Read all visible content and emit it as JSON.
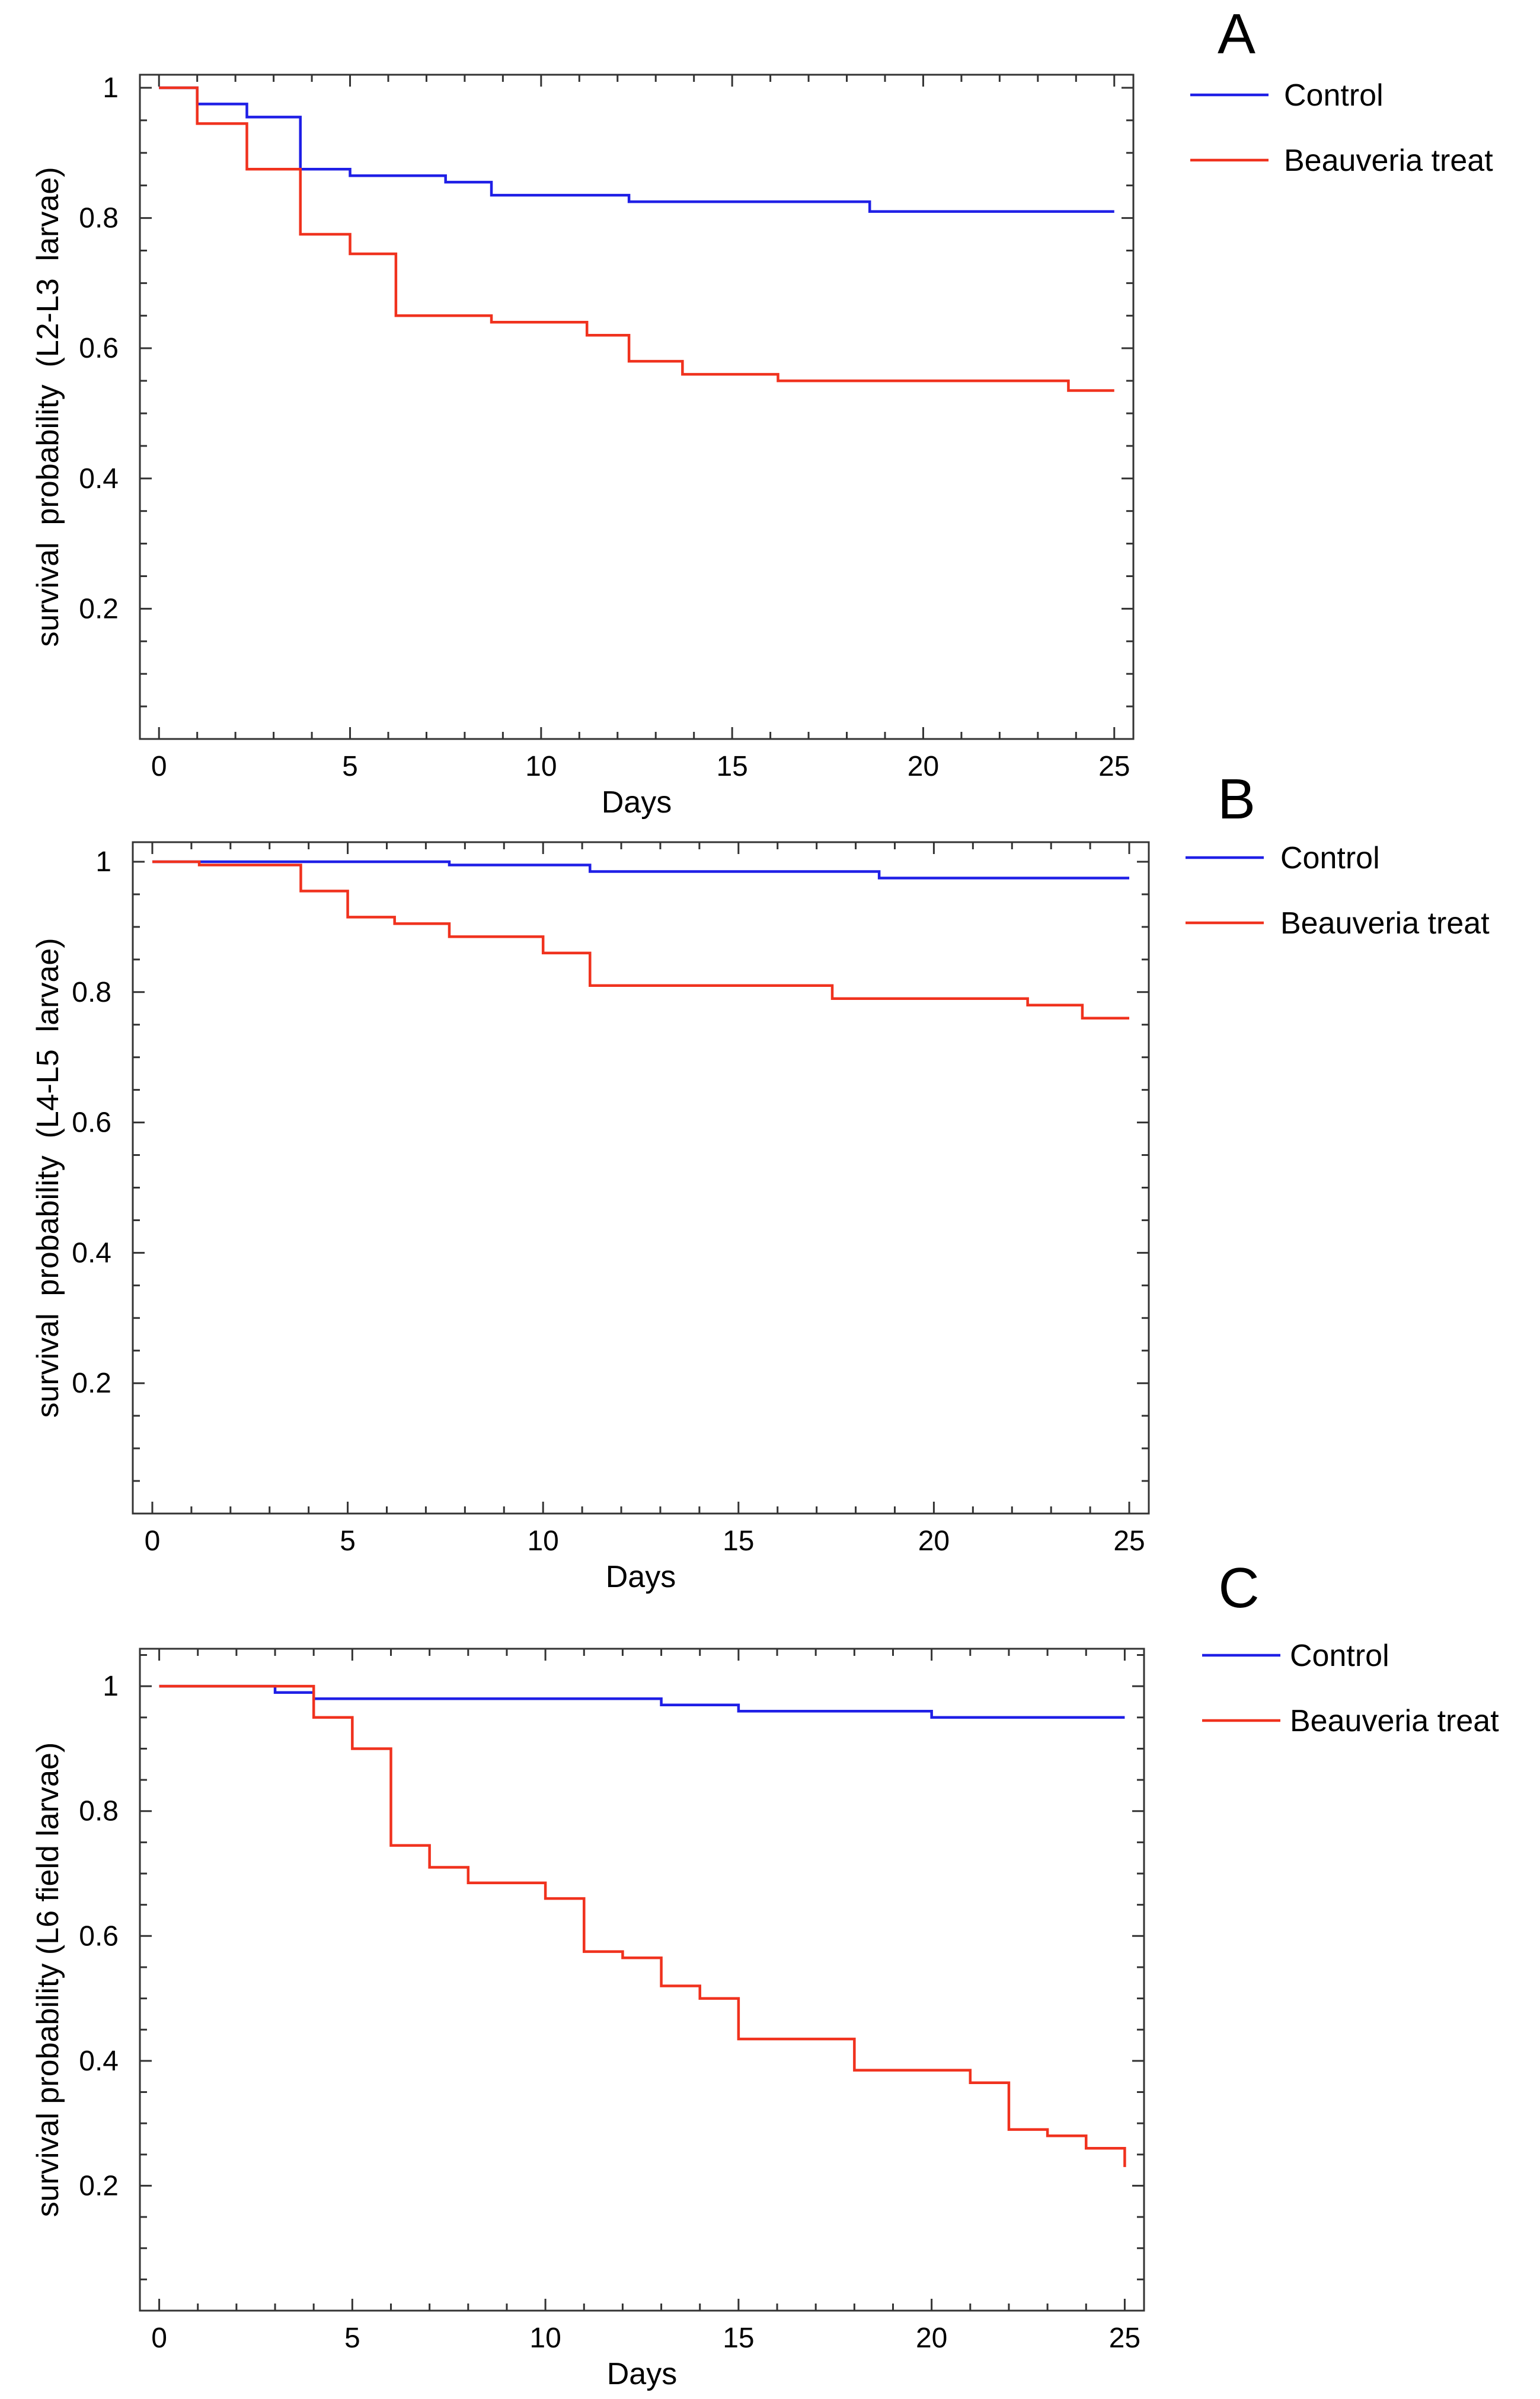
{
  "figure": {
    "description_colors": {
      "control": "#1f1fe6",
      "beauveria": "#f0321e",
      "axes": "#333333"
    }
  },
  "chart_data": [
    {
      "type": "line",
      "panel_letter": "A",
      "title": "",
      "xlabel": "Days",
      "ylabel": "survival  probability  (L2-L3  larvae)",
      "xlim": [
        -0.5,
        25.5
      ],
      "ylim": [
        0,
        1.02
      ],
      "xticks": [
        0,
        5,
        10,
        15,
        20,
        25
      ],
      "yticks": [
        0.2,
        0.4,
        0.6,
        0.8,
        1
      ],
      "ytick_labels": [
        "0.2",
        "0.4",
        "0.6",
        "0.8",
        "1"
      ],
      "grid": false,
      "legend_position": "outside-top-right",
      "series": [
        {
          "name": "Control",
          "color": "#1f1fe6",
          "steps": [
            [
              0,
              1
            ],
            [
              1,
              0.975
            ],
            [
              2.3,
              0.955
            ],
            [
              3.7,
              0.875
            ],
            [
              5,
              0.865
            ],
            [
              7.5,
              0.855
            ],
            [
              8.7,
              0.835
            ],
            [
              12.3,
              0.825
            ],
            [
              18.6,
              0.81
            ],
            [
              25,
              0.81
            ]
          ]
        },
        {
          "name": "Beauveria treat",
          "color": "#f0321e",
          "steps": [
            [
              0,
              1
            ],
            [
              1,
              0.945
            ],
            [
              2.3,
              0.875
            ],
            [
              3.7,
              0.775
            ],
            [
              5,
              0.745
            ],
            [
              6.2,
              0.65
            ],
            [
              8.7,
              0.64
            ],
            [
              11.2,
              0.62
            ],
            [
              12.3,
              0.58
            ],
            [
              13.7,
              0.56
            ],
            [
              16.2,
              0.55
            ],
            [
              23.8,
              0.535
            ],
            [
              25,
              0.535
            ]
          ]
        }
      ]
    },
    {
      "type": "line",
      "panel_letter": "B",
      "title": "",
      "xlabel": "Days",
      "ylabel": "survival  probability  (L4-L5  larvae)",
      "xlim": [
        -0.5,
        25.5
      ],
      "ylim": [
        0,
        1.03
      ],
      "xticks": [
        0,
        5,
        10,
        15,
        20,
        25
      ],
      "yticks": [
        0.2,
        0.4,
        0.6,
        0.8,
        1
      ],
      "ytick_labels": [
        "0.2",
        "0.4",
        "0.6",
        "0.8",
        "1"
      ],
      "grid": false,
      "legend_position": "outside-top-right",
      "series": [
        {
          "name": "Control",
          "color": "#1f1fe6",
          "steps": [
            [
              0,
              1
            ],
            [
              7.6,
              0.995
            ],
            [
              11.2,
              0.985
            ],
            [
              18.6,
              0.975
            ],
            [
              25,
              0.975
            ]
          ]
        },
        {
          "name": "Beauveria treat",
          "color": "#f0321e",
          "steps": [
            [
              0,
              1
            ],
            [
              1.2,
              0.995
            ],
            [
              3.8,
              0.955
            ],
            [
              5,
              0.915
            ],
            [
              6.2,
              0.905
            ],
            [
              7.6,
              0.885
            ],
            [
              10,
              0.86
            ],
            [
              11.2,
              0.81
            ],
            [
              17.4,
              0.79
            ],
            [
              22.4,
              0.78
            ],
            [
              23.8,
              0.76
            ],
            [
              25,
              0.76
            ]
          ]
        }
      ]
    },
    {
      "type": "line",
      "panel_letter": "C",
      "title": "",
      "xlabel": "Days",
      "ylabel": "survival probability (L6 field larvae)",
      "xlim": [
        -0.5,
        25.5
      ],
      "ylim": [
        0,
        1.06
      ],
      "xticks": [
        0,
        5,
        10,
        15,
        20,
        25
      ],
      "yticks": [
        0.2,
        0.4,
        0.6,
        0.8,
        1
      ],
      "ytick_labels": [
        "0.2",
        "0.4",
        "0.6",
        "0.8",
        "1"
      ],
      "grid": false,
      "legend_position": "outside-top-right",
      "series": [
        {
          "name": "Control",
          "color": "#1f1fe6",
          "steps": [
            [
              0,
              1
            ],
            [
              3,
              0.99
            ],
            [
              4,
              0.98
            ],
            [
              13,
              0.97
            ],
            [
              15,
              0.96
            ],
            [
              20,
              0.95
            ],
            [
              25,
              0.95
            ]
          ]
        },
        {
          "name": "Beauveria treat",
          "color": "#f0321e",
          "steps": [
            [
              0,
              1
            ],
            [
              4,
              0.95
            ],
            [
              5,
              0.9
            ],
            [
              6,
              0.745
            ],
            [
              7,
              0.71
            ],
            [
              8,
              0.685
            ],
            [
              10,
              0.66
            ],
            [
              11,
              0.575
            ],
            [
              12,
              0.565
            ],
            [
              13,
              0.52
            ],
            [
              14,
              0.5
            ],
            [
              15,
              0.435
            ],
            [
              18,
              0.385
            ],
            [
              21,
              0.365
            ],
            [
              22,
              0.29
            ],
            [
              23,
              0.28
            ],
            [
              24,
              0.26
            ],
            [
              25,
              0.23
            ]
          ]
        }
      ]
    }
  ]
}
